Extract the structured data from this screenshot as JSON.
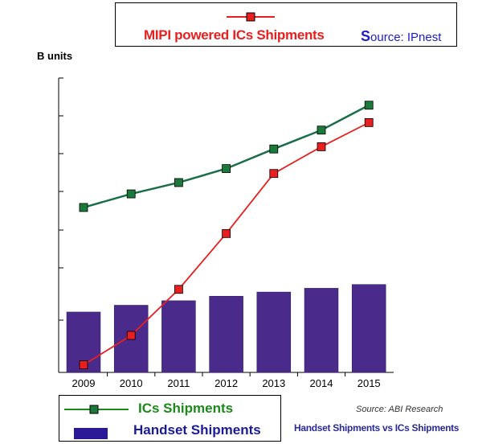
{
  "legend_top": {
    "series_label": "MIPI powered ICs Shipments",
    "source_prefix": "S",
    "source_rest": "ource: IPnest"
  },
  "y_unit": "B units",
  "legend_bottom": {
    "ics_label": "ICs Shipments",
    "handset_label": "Handset Shipments"
  },
  "source_note": "Source: ABI Research",
  "caption": "Handset Shipments vs ICs Shipments",
  "colors": {
    "mipi": "#e81f1f",
    "ics": "#1a6e4a",
    "handset": "#4a2a8a"
  },
  "chart_data": {
    "type": "bar",
    "categories": [
      "2009",
      "2010",
      "2011",
      "2012",
      "2013",
      "2014",
      "2015"
    ],
    "ylim": [
      0,
      7.8
    ],
    "series": [
      {
        "name": "Handset Shipments",
        "kind": "bar",
        "values": [
          1.6,
          1.78,
          1.9,
          2.02,
          2.13,
          2.23,
          2.33
        ]
      },
      {
        "name": "ICs Shipments",
        "kind": "line",
        "values": [
          4.37,
          4.73,
          5.03,
          5.4,
          5.92,
          6.42,
          7.08
        ]
      },
      {
        "name": "MIPI powered ICs Shipments",
        "kind": "line",
        "values": [
          0.2,
          0.98,
          2.2,
          3.68,
          5.27,
          5.98,
          6.62
        ]
      }
    ],
    "title": "",
    "xlabel": "",
    "ylabel": "B units",
    "grid": false
  }
}
